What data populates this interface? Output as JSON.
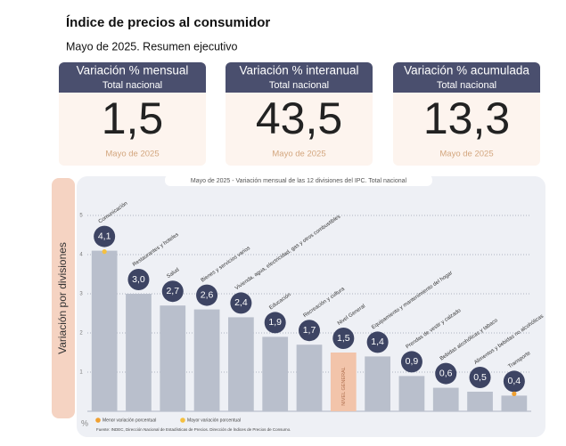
{
  "header": {
    "title": "Índice de precios al consumidor",
    "subtitle": "Mayo de 2025. Resumen ejecutivo"
  },
  "cards": [
    {
      "title": "Variación % mensual",
      "scope": "Total nacional",
      "value": "1,5",
      "period": "Mayo de 2025"
    },
    {
      "title": "Variación % interanual",
      "scope": "Total nacional",
      "value": "43,5",
      "period": "Mayo de 2025"
    },
    {
      "title": "Variación % acumulada",
      "scope": "Total nacional",
      "value": "13,3",
      "period": "Mayo de 2025"
    }
  ],
  "chart_data": {
    "type": "bar",
    "title": "Mayo de 2025 - Variación mensual de las 12 divisiones del IPC. Total nacional",
    "y_label": "Variación por divisiones",
    "y_unit": "%",
    "categories": [
      "Comunicación",
      "Restaurantes y hoteles",
      "Salud",
      "Bienes y servicios varios",
      "Vivienda, agua, electricidad, gas y otros combustibles",
      "Educación",
      "Recreación y cultura",
      "Nivel General",
      "Equipamiento y mantenimiento del hogar",
      "Prendas de vestir y calzado",
      "Bebidas alcohólicas y tabaco",
      "Alimentos y bebidas no alcohólicas",
      "Transporte"
    ],
    "values": [
      4.1,
      3.0,
      2.7,
      2.6,
      2.4,
      1.9,
      1.7,
      1.5,
      1.4,
      0.9,
      0.6,
      0.5,
      0.4
    ],
    "value_labels": [
      "4,1",
      "3,0",
      "2,7",
      "2,6",
      "2,4",
      "1,9",
      "1,7",
      "1,5",
      "1,4",
      "0,9",
      "0,6",
      "0,5",
      "0,4"
    ],
    "colors": [
      "#b9bfcc",
      "#b9bfcc",
      "#b9bfcc",
      "#b9bfcc",
      "#b9bfcc",
      "#b9bfcc",
      "#b9bfcc",
      "#f2c4aa",
      "#b9bfcc",
      "#b9bfcc",
      "#b9bfcc",
      "#b9bfcc",
      "#b9bfcc"
    ],
    "bar_label": "NIVEL GENERAL",
    "ylim": [
      0,
      5.6
    ],
    "yticks": [
      1,
      2,
      3,
      4,
      5
    ],
    "grid": true,
    "legend": [
      {
        "name": "Menor variación porcentual",
        "color": "#f0a030"
      },
      {
        "name": "Mayor variación porcentual",
        "color": "#f5c040"
      }
    ],
    "source": "Fuente: INDEC, Dirección Nacional de Estadísticas de Precios. Dirección de Índices de Precios de Consumo."
  }
}
